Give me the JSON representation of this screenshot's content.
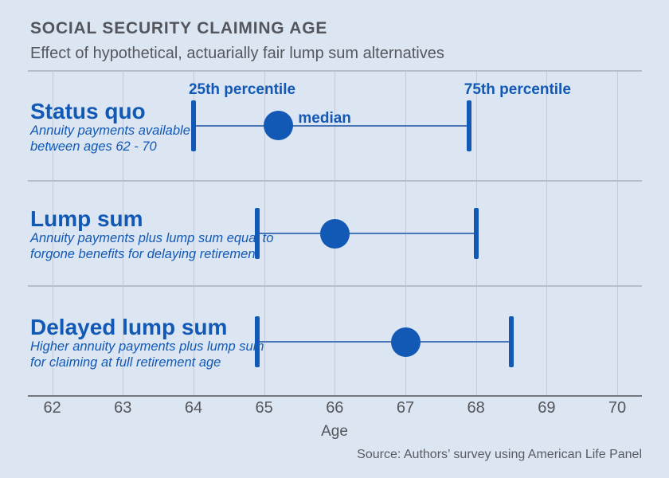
{
  "header": {
    "title": "SOCIAL SECURITY CLAIMING AGE",
    "subtitle": "Effect of hypothetical, actuarially fair lump sum alternatives"
  },
  "footer": {
    "source": "Source: Authors’ survey using American Life Panel"
  },
  "colors": {
    "background": "#dce5f2",
    "accent_blue": "#1159b5",
    "connector_blue": "#4a74b8",
    "grid": "#c5cbd6",
    "separator": "#b8bec9",
    "axis": "#74777d",
    "text_dark": "#54565a",
    "text_gray": "#595c62"
  },
  "chart_data": {
    "type": "range-dot",
    "title": "SOCIAL SECURITY CLAIMING AGE",
    "subtitle": "Effect of hypothetical, actuarially fair lump sum alternatives",
    "xlabel": "Age",
    "xlim": [
      62,
      70.4
    ],
    "x_ticks": [
      62,
      63,
      64,
      65,
      66,
      67,
      68,
      69,
      70
    ],
    "grid": "vertical-only",
    "rows": [
      {
        "label": "Status quo",
        "description": [
          "Annuity payments available",
          "between ages 62 - 70"
        ],
        "p25": 64.0,
        "median": 65.2,
        "p75": 67.9
      },
      {
        "label": "Lump sum",
        "description": [
          "Annuity payments plus lump sum equal to",
          "forgone benefits for delaying retirement"
        ],
        "p25": 64.9,
        "median": 66.0,
        "p75": 68.0
      },
      {
        "label": "Delayed lump sum",
        "description": [
          "Higher annuity payments plus lump sum",
          "for claiming at full retirement age"
        ],
        "p25": 64.9,
        "median": 67.0,
        "p75": 68.5
      }
    ],
    "annotations": {
      "attached_to_row": 0,
      "p25_label": "25th percentile",
      "median_label": "median",
      "p75_label": "75th percentile"
    }
  }
}
